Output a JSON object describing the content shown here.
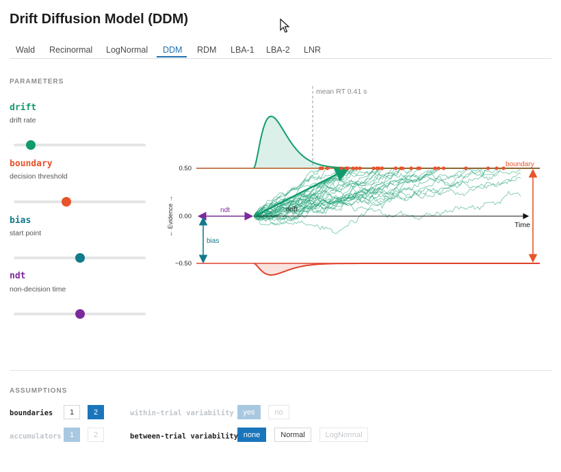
{
  "header": {
    "title": "Drift Diffusion Model (DDM)"
  },
  "tabs": [
    {
      "label": "Wald"
    },
    {
      "label": "Recinormal"
    },
    {
      "label": "LogNormal"
    },
    {
      "label": "DDM",
      "active": true
    },
    {
      "label": "RDM"
    },
    {
      "label": "LBA-1"
    },
    {
      "label": "LBA-2"
    },
    {
      "label": "LNR"
    }
  ],
  "parameters": {
    "heading": "PARAMETERS",
    "items": [
      {
        "name": "drift",
        "description": "drift rate",
        "color": "#0f9b6e",
        "level": 0.13
      },
      {
        "name": "boundary",
        "description": "decision threshold",
        "color": "#e8532a",
        "level": 0.4
      },
      {
        "name": "bias",
        "description": "start point",
        "color": "#117a8b",
        "level": 0.5
      },
      {
        "name": "ndt",
        "description": "non-decision time",
        "color": "#7b2a9c",
        "level": 0.5
      }
    ]
  },
  "plot": {
    "mean_rt_label": "mean RT 0.41 s",
    "boundary_label": "boundary",
    "ndt_label": "ndt",
    "drift_label": "drift",
    "bias_label": "bias",
    "time_label": "Time",
    "y_axis_label": "← Evidence →",
    "y_ticks": [
      "0.50",
      "0.00",
      "−0.50"
    ],
    "colors": {
      "upper": "#0f9b6e",
      "lower": "#e0402a",
      "boundary_line": "#b3541e",
      "ndt": "#7b2a9c",
      "bias": "#117a8b"
    }
  },
  "assumptions": {
    "heading": "ASSUMPTIONS",
    "boundaries": {
      "label": "boundaries",
      "options": [
        "1",
        "2"
      ],
      "selected": "2"
    },
    "accumulators": {
      "label": "accumulators",
      "options": [
        "1",
        "2"
      ],
      "selected": "1"
    },
    "within_trial": {
      "label": "within-trial variability",
      "options": [
        "yes",
        "no"
      ],
      "selected": "yes"
    },
    "between_trial": {
      "label": "between-trial variability",
      "options": [
        "none",
        "Normal",
        "LogNormal"
      ],
      "selected": "none"
    }
  }
}
